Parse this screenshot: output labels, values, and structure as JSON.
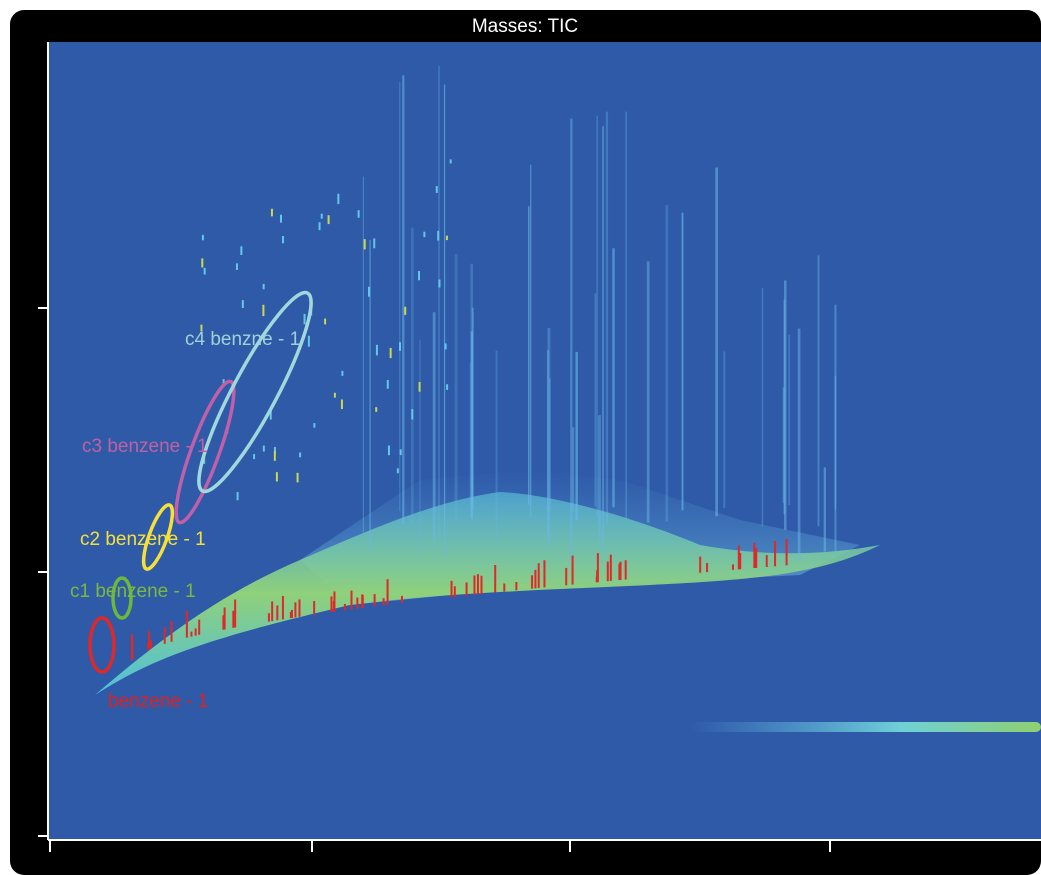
{
  "title": "Masses: TIC",
  "annotations": [
    {
      "label": "c4 benzne - 1"
    },
    {
      "label": "c3 benzene - 1"
    },
    {
      "label": "c2 benzene - 1"
    },
    {
      "label": "c1 benzene - 1"
    },
    {
      "label": "benzene - 1"
    }
  ]
}
